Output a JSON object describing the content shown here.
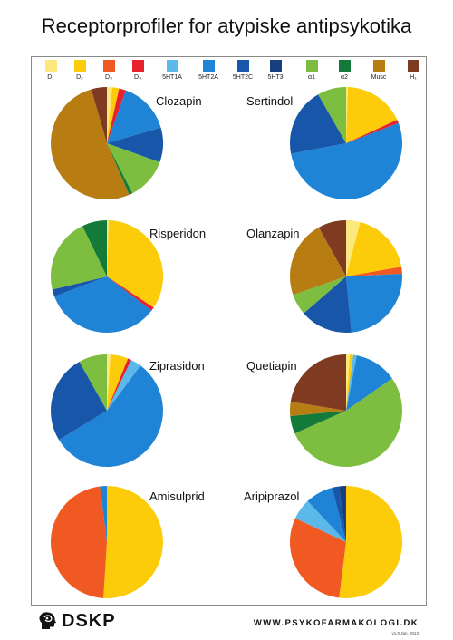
{
  "title": "Receptorprofiler for atypiske antipsykotika",
  "legend": [
    {
      "label": "D₁",
      "color": "#fde880"
    },
    {
      "label": "D₂",
      "color": "#fccc0a"
    },
    {
      "label": "D₃",
      "color": "#f05a22"
    },
    {
      "label": "D₄",
      "color": "#e8212e"
    },
    {
      "label": "5HT1A",
      "color": "#5bb8e8"
    },
    {
      "label": "5HT2A",
      "color": "#1f84d6"
    },
    {
      "label": "5HT2C",
      "color": "#1756a9"
    },
    {
      "label": "5HT3",
      "color": "#173f80"
    },
    {
      "label": "α1",
      "color": "#7dbd3f"
    },
    {
      "label": "α2",
      "color": "#137a3a"
    },
    {
      "label": "Musc",
      "color": "#b77d13"
    },
    {
      "label": "H₁",
      "color": "#7f3a22"
    }
  ],
  "chart_data": [
    {
      "type": "pie",
      "title": "Clozapin",
      "categories": [
        "D1",
        "D2",
        "D3",
        "D4",
        "5HT1A",
        "5HT2A",
        "5HT2C",
        "5HT3",
        "α1",
        "α2",
        "Musc",
        "H1"
      ],
      "values": [
        1.5,
        2,
        0,
        2,
        0,
        15,
        10,
        0,
        12,
        1,
        52,
        4.5
      ]
    },
    {
      "type": "pie",
      "title": "Sertindol",
      "categories": [
        "D1",
        "D2",
        "D3",
        "D4",
        "5HT1A",
        "5HT2A",
        "5HT2C",
        "5HT3",
        "α1",
        "α2",
        "Musc",
        "H1"
      ],
      "values": [
        0.5,
        17,
        0,
        1,
        0,
        51,
        19,
        0,
        8,
        0,
        0,
        0
      ]
    },
    {
      "type": "pie",
      "title": "Risperidon",
      "categories": [
        "D1",
        "D2",
        "D3",
        "D4",
        "5HT1A",
        "5HT2A",
        "5HT2C",
        "5HT3",
        "α1",
        "α2",
        "Musc",
        "H1"
      ],
      "values": [
        0.5,
        33,
        0,
        1,
        0,
        33,
        2,
        0,
        21,
        7,
        0,
        0
      ]
    },
    {
      "type": "pie",
      "title": "Olanzapin",
      "categories": [
        "D1",
        "D2",
        "D3",
        "D4",
        "5HT1A",
        "5HT2A",
        "5HT2C",
        "5HT3",
        "α1",
        "α2",
        "Musc",
        "H1"
      ],
      "values": [
        4,
        18,
        2,
        0,
        0,
        24,
        15,
        0,
        6,
        0,
        22,
        8
      ]
    },
    {
      "type": "pie",
      "title": "Ziprasidon",
      "categories": [
        "D1",
        "D2",
        "D3",
        "D4",
        "5HT1A",
        "5HT2A",
        "5HT2C",
        "5HT3",
        "α1",
        "α2",
        "Musc",
        "H1"
      ],
      "values": [
        1,
        5,
        0,
        1,
        3,
        55,
        25,
        0,
        8,
        0,
        0,
        0
      ]
    },
    {
      "type": "pie",
      "title": "Quetiapin",
      "categories": [
        "D1",
        "D2",
        "D3",
        "D4",
        "5HT1A",
        "5HT2A",
        "5HT2C",
        "5HT3",
        "α1",
        "α2",
        "Musc",
        "H1"
      ],
      "values": [
        1,
        1,
        0,
        0,
        1,
        12,
        0,
        0,
        52,
        5,
        4,
        22
      ]
    },
    {
      "type": "pie",
      "title": "Amisulprid",
      "categories": [
        "D1",
        "D2",
        "D3",
        "D4",
        "5HT1A",
        "5HT2A",
        "5HT2C",
        "5HT3",
        "α1",
        "α2",
        "Musc",
        "H1"
      ],
      "values": [
        0,
        51,
        47,
        0,
        0,
        2,
        0,
        0,
        0,
        0,
        0,
        0
      ]
    },
    {
      "type": "pie",
      "title": "Aripiprazol",
      "categories": [
        "D1",
        "D2",
        "D3",
        "D4",
        "5HT1A",
        "5HT2A",
        "5HT2C",
        "5HT3",
        "α1",
        "α2",
        "Musc",
        "H1"
      ],
      "values": [
        0,
        52,
        30,
        0,
        6,
        8,
        2,
        2,
        0,
        0,
        0,
        0
      ]
    }
  ],
  "footer": {
    "brand": "DSKP",
    "url": "WWW.PSYKOFARMAKOLOGI.DK",
    "version": "v1.0 Jan. 2013"
  }
}
